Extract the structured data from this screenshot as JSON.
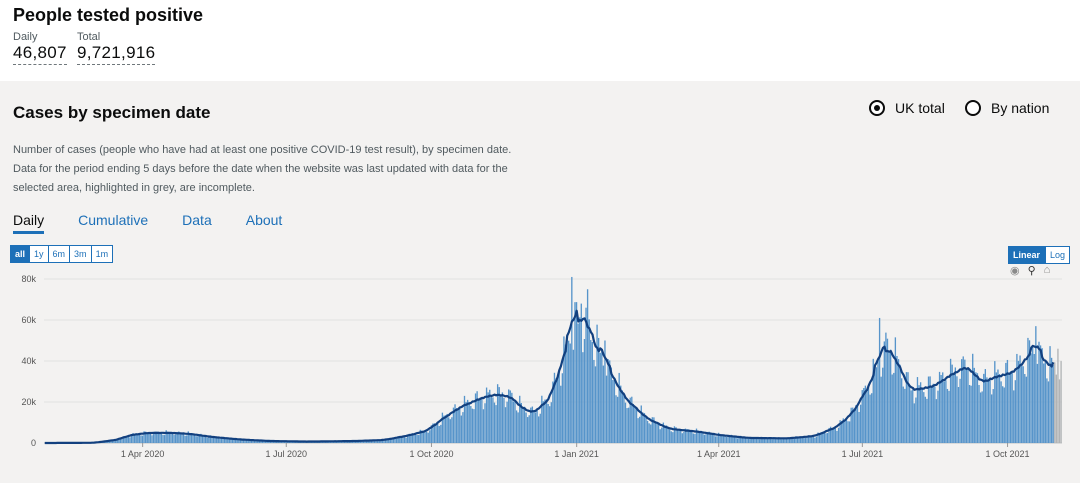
{
  "summary": {
    "title": "People tested positive",
    "daily_label": "Daily",
    "daily_value": "46,807",
    "total_label": "Total",
    "total_value": "9,721,916"
  },
  "panel": {
    "title": "Cases by specimen date",
    "radio_uk": "UK total",
    "radio_nation": "By nation",
    "selected_radio": "UK total",
    "description": "Number of cases (people who have had at least one positive COVID-19 test result), by specimen date. Data for the period ending 5 days before the date when the website was last updated with data for the selected area, highlighted in grey, are incomplete."
  },
  "tabs": [
    {
      "label": "Daily",
      "active": true
    },
    {
      "label": "Cumulative",
      "active": false
    },
    {
      "label": "Data",
      "active": false
    },
    {
      "label": "About",
      "active": false
    }
  ],
  "range_buttons": [
    {
      "label": "all",
      "active": true
    },
    {
      "label": "1y",
      "active": false
    },
    {
      "label": "6m",
      "active": false
    },
    {
      "label": "3m",
      "active": false
    },
    {
      "label": "1m",
      "active": false
    }
  ],
  "scale_buttons": [
    {
      "label": "Linear",
      "active": true
    },
    {
      "label": "Log",
      "active": false
    }
  ],
  "toolbar_icons": [
    "camera-icon",
    "zoom-icon",
    "home-icon"
  ],
  "colors": {
    "bars": "#5694ca",
    "avg_line": "#12407f",
    "incomplete": "#b1b4b6",
    "accent": "#1d70b8"
  },
  "chart_data": {
    "type": "bar",
    "title": "Cases by specimen date",
    "xlabel": "",
    "ylabel": "",
    "x_ticks": [
      "1 Apr 2020",
      "1 Jul 2020",
      "1 Oct 2020",
      "1 Jan 2021",
      "1 Apr 2021",
      "1 Jul 2021",
      "1 Oct 2021"
    ],
    "y_ticks": [
      "0",
      "20k",
      "40k",
      "60k",
      "80k"
    ],
    "ylim": [
      0,
      80000
    ],
    "start_date": "2020-01-30",
    "end_date": "2021-11-04",
    "incomplete_days": 5,
    "series": [
      {
        "name": "Daily cases",
        "kind": "bar",
        "anchors": [
          [
            "2020-01-30",
            0
          ],
          [
            "2020-03-01",
            100
          ],
          [
            "2020-03-15",
            1500
          ],
          [
            "2020-03-25",
            4000
          ],
          [
            "2020-04-05",
            5000
          ],
          [
            "2020-04-20",
            5000
          ],
          [
            "2020-05-01",
            4500
          ],
          [
            "2020-05-15",
            3000
          ],
          [
            "2020-06-01",
            1800
          ],
          [
            "2020-06-20",
            1000
          ],
          [
            "2020-07-15",
            700
          ],
          [
            "2020-08-15",
            1000
          ],
          [
            "2020-09-01",
            1500
          ],
          [
            "2020-09-15",
            3500
          ],
          [
            "2020-09-28",
            6000
          ],
          [
            "2020-10-10",
            13000
          ],
          [
            "2020-10-20",
            18000
          ],
          [
            "2020-11-01",
            22000
          ],
          [
            "2020-11-10",
            24000
          ],
          [
            "2020-11-20",
            23000
          ],
          [
            "2020-11-28",
            17000
          ],
          [
            "2020-12-05",
            15000
          ],
          [
            "2020-12-15",
            22000
          ],
          [
            "2020-12-22",
            38000
          ],
          [
            "2020-12-30",
            58000
          ],
          [
            "2021-01-05",
            60000
          ],
          [
            "2021-01-12",
            50000
          ],
          [
            "2021-01-20",
            38000
          ],
          [
            "2021-02-01",
            22000
          ],
          [
            "2021-02-15",
            12000
          ],
          [
            "2021-03-01",
            7000
          ],
          [
            "2021-03-20",
            5500
          ],
          [
            "2021-04-01",
            4000
          ],
          [
            "2021-04-20",
            2500
          ],
          [
            "2021-05-15",
            2300
          ],
          [
            "2021-06-01",
            3500
          ],
          [
            "2021-06-15",
            8000
          ],
          [
            "2021-06-25",
            15000
          ],
          [
            "2021-07-05",
            28000
          ],
          [
            "2021-07-17",
            48000
          ],
          [
            "2021-07-23",
            40000
          ],
          [
            "2021-08-01",
            26000
          ],
          [
            "2021-08-15",
            28000
          ],
          [
            "2021-08-25",
            33000
          ],
          [
            "2021-09-05",
            38000
          ],
          [
            "2021-09-15",
            30000
          ],
          [
            "2021-09-25",
            33000
          ],
          [
            "2021-10-05",
            35000
          ],
          [
            "2021-10-18",
            46000
          ],
          [
            "2021-10-28",
            38000
          ],
          [
            "2021-11-04",
            36000
          ]
        ],
        "spikes": [
          [
            "2020-12-29",
            81000
          ],
          [
            "2021-01-04",
            68000
          ],
          [
            "2021-01-08",
            75000
          ],
          [
            "2021-01-19",
            50000
          ],
          [
            "2021-07-12",
            61000
          ],
          [
            "2021-10-19",
            57000
          ],
          [
            "2021-11-02",
            46000
          ]
        ]
      },
      {
        "name": "Rolling average",
        "kind": "line"
      }
    ]
  }
}
